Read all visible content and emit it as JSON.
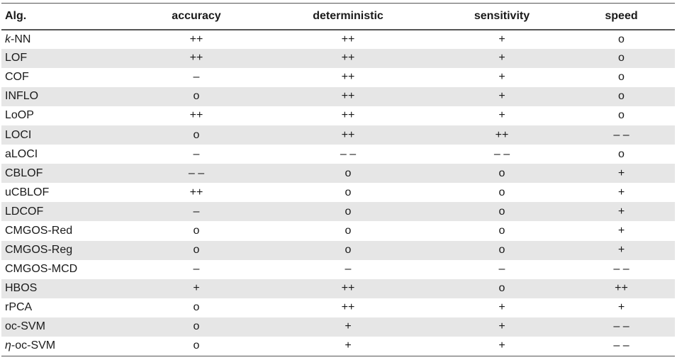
{
  "table": {
    "headers": [
      "Alg.",
      "accuracy",
      "deterministic",
      "sensitivity",
      "speed"
    ],
    "rows": [
      {
        "alg_prefix": "k",
        "alg_rest": "-NN",
        "cells": [
          "++",
          "++",
          "+",
          "o"
        ]
      },
      {
        "alg_prefix": "",
        "alg_rest": "LOF",
        "cells": [
          "++",
          "++",
          "+",
          "o"
        ]
      },
      {
        "alg_prefix": "",
        "alg_rest": "COF",
        "cells": [
          "–",
          "++",
          "+",
          "o"
        ]
      },
      {
        "alg_prefix": "",
        "alg_rest": "INFLO",
        "cells": [
          "o",
          "++",
          "+",
          "o"
        ]
      },
      {
        "alg_prefix": "",
        "alg_rest": "LoOP",
        "cells": [
          "++",
          "++",
          "+",
          "o"
        ]
      },
      {
        "alg_prefix": "",
        "alg_rest": "LOCI",
        "cells": [
          "o",
          "++",
          "++",
          "– –"
        ]
      },
      {
        "alg_prefix": "",
        "alg_rest": "aLOCI",
        "cells": [
          "–",
          "– –",
          "– –",
          "o"
        ]
      },
      {
        "alg_prefix": "",
        "alg_rest": "CBLOF",
        "cells": [
          "– –",
          "o",
          "o",
          "+"
        ]
      },
      {
        "alg_prefix": "",
        "alg_rest": "uCBLOF",
        "cells": [
          "++",
          "o",
          "o",
          "+"
        ]
      },
      {
        "alg_prefix": "",
        "alg_rest": "LDCOF",
        "cells": [
          "–",
          "o",
          "o",
          "+"
        ]
      },
      {
        "alg_prefix": "",
        "alg_rest": "CMGOS-Red",
        "cells": [
          "o",
          "o",
          "o",
          "+"
        ]
      },
      {
        "alg_prefix": "",
        "alg_rest": "CMGOS-Reg",
        "cells": [
          "o",
          "o",
          "o",
          "+"
        ]
      },
      {
        "alg_prefix": "",
        "alg_rest": "CMGOS-MCD",
        "cells": [
          "–",
          "–",
          "–",
          "– –"
        ]
      },
      {
        "alg_prefix": "",
        "alg_rest": "HBOS",
        "cells": [
          "+",
          "++",
          "o",
          "++"
        ]
      },
      {
        "alg_prefix": "",
        "alg_rest": "rPCA",
        "cells": [
          "o",
          "++",
          "+",
          "+"
        ]
      },
      {
        "alg_prefix": "",
        "alg_rest": "oc-SVM",
        "cells": [
          "o",
          "+",
          "+",
          "– –"
        ]
      },
      {
        "alg_prefix": "η",
        "alg_rest": "-oc-SVM",
        "cells": [
          "o",
          "+",
          "+",
          "– –"
        ]
      }
    ]
  }
}
